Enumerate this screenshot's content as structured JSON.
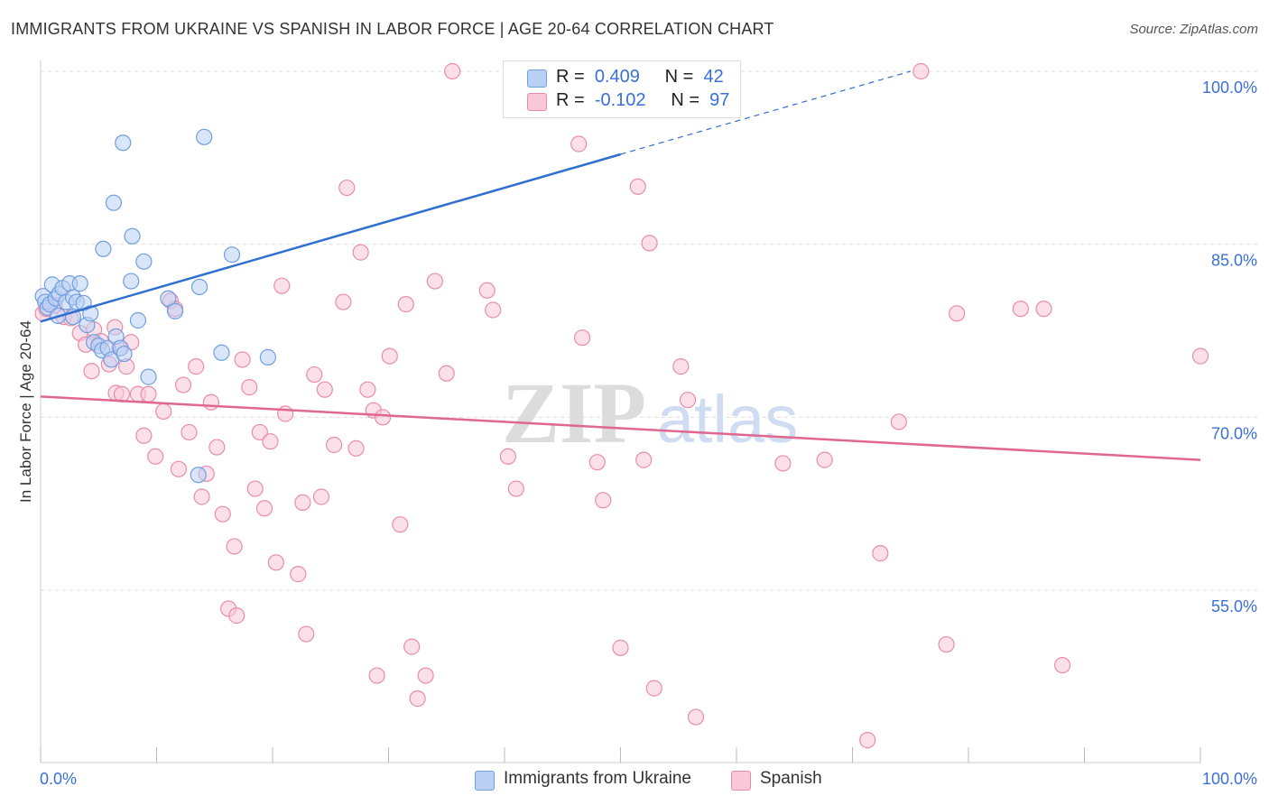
{
  "title": "IMMIGRANTS FROM UKRAINE VS SPANISH IN LABOR FORCE | AGE 20-64 CORRELATION CHART",
  "source": "Source: ZipAtlas.com",
  "watermark": {
    "zip": "ZIP",
    "atlas": "atlas"
  },
  "legend_top": [
    {
      "r_label": "R =",
      "r_value": "0.409",
      "n_label": "N =",
      "n_value": "42"
    },
    {
      "r_label": "R =",
      "r_value": "-0.102",
      "n_label": "N =",
      "n_value": "97"
    }
  ],
  "colors": {
    "ukraine_fill": "#b9d0f4",
    "ukraine_stroke": "#6f9fe0",
    "ukraine_line": "#2e6fcf",
    "spanish_fill": "#f9c7d7",
    "spanish_stroke": "#e98cab",
    "spanish_line": "#e0678f",
    "axis_text": "#3a6fd8",
    "grid": "#dddddd"
  },
  "chart_data": {
    "type": "scatter",
    "title": "IMMIGRANTS FROM UKRAINE VS SPANISH IN LABOR FORCE | AGE 20-64 CORRELATION CHART",
    "xlabel": "",
    "ylabel": "In Labor Force | Age 20-64",
    "xlim": [
      0,
      100
    ],
    "ylim": [
      40,
      102
    ],
    "x_tick_labels": [
      {
        "value": 0,
        "label": "0.0%"
      },
      {
        "value": 100,
        "label": "100.0%"
      }
    ],
    "y_tick_labels": [
      {
        "value": 55,
        "label": "55.0%"
      },
      {
        "value": 70,
        "label": "70.0%"
      },
      {
        "value": 85,
        "label": "85.0%"
      },
      {
        "value": 100,
        "label": "100.0%"
      }
    ],
    "series": [
      {
        "name": "Immigrants from Ukraine",
        "r": 0.409,
        "n": 42,
        "trend": {
          "x0": 0,
          "y0": 78.3,
          "x1": 50,
          "y1": 92.8,
          "dash_to_x": 75,
          "dash_to_y": 100
        },
        "points": [
          [
            0.2,
            80.5
          ],
          [
            0.4,
            80.0
          ],
          [
            0.6,
            79.5
          ],
          [
            0.8,
            79.8
          ],
          [
            1.0,
            81.5
          ],
          [
            1.3,
            80.3
          ],
          [
            1.6,
            80.7
          ],
          [
            1.9,
            81.2
          ],
          [
            2.2,
            80.0
          ],
          [
            2.5,
            81.6
          ],
          [
            2.8,
            80.4
          ],
          [
            3.1,
            80.0
          ],
          [
            3.4,
            81.6
          ],
          [
            3.7,
            79.9
          ],
          [
            4.0,
            78.0
          ],
          [
            4.3,
            79.0
          ],
          [
            4.6,
            76.5
          ],
          [
            5.0,
            76.2
          ],
          [
            5.3,
            75.8
          ],
          [
            5.8,
            76.0
          ],
          [
            6.1,
            75.0
          ],
          [
            6.5,
            77.0
          ],
          [
            6.9,
            76.0
          ],
          [
            7.2,
            75.5
          ],
          [
            5.4,
            84.6
          ],
          [
            6.3,
            88.6
          ],
          [
            7.1,
            93.8
          ],
          [
            7.9,
            85.7
          ],
          [
            7.8,
            81.8
          ],
          [
            8.4,
            78.4
          ],
          [
            8.9,
            83.5
          ],
          [
            9.3,
            73.5
          ],
          [
            11.0,
            80.3
          ],
          [
            11.6,
            79.2
          ],
          [
            13.7,
            81.3
          ],
          [
            14.1,
            94.3
          ],
          [
            13.6,
            65.0
          ],
          [
            15.6,
            75.6
          ],
          [
            16.5,
            84.1
          ],
          [
            19.6,
            75.2
          ],
          [
            1.5,
            78.8
          ],
          [
            2.8,
            78.7
          ]
        ]
      },
      {
        "name": "Spanish",
        "r": -0.102,
        "n": 97,
        "trend": {
          "x0": 0,
          "y0": 71.8,
          "x1": 100,
          "y1": 66.3
        },
        "points": [
          [
            0.2,
            79.0
          ],
          [
            0.5,
            79.4
          ],
          [
            1.2,
            79.7
          ],
          [
            2.0,
            78.7
          ],
          [
            2.6,
            78.6
          ],
          [
            3.4,
            77.3
          ],
          [
            3.9,
            76.3
          ],
          [
            4.6,
            77.6
          ],
          [
            4.4,
            74.0
          ],
          [
            5.2,
            76.6
          ],
          [
            5.9,
            74.6
          ],
          [
            6.4,
            77.8
          ],
          [
            6.8,
            76.0
          ],
          [
            6.5,
            72.1
          ],
          [
            7.0,
            72.0
          ],
          [
            7.4,
            74.4
          ],
          [
            7.8,
            76.5
          ],
          [
            8.4,
            72.0
          ],
          [
            8.9,
            68.4
          ],
          [
            9.3,
            72.0
          ],
          [
            9.9,
            66.6
          ],
          [
            10.6,
            70.5
          ],
          [
            11.2,
            80.1
          ],
          [
            11.6,
            79.4
          ],
          [
            11.9,
            65.5
          ],
          [
            12.3,
            72.8
          ],
          [
            12.8,
            68.7
          ],
          [
            13.4,
            74.4
          ],
          [
            13.9,
            63.1
          ],
          [
            14.3,
            65.1
          ],
          [
            14.7,
            71.3
          ],
          [
            15.2,
            67.4
          ],
          [
            15.7,
            61.6
          ],
          [
            16.2,
            53.4
          ],
          [
            16.7,
            58.8
          ],
          [
            16.9,
            52.8
          ],
          [
            17.4,
            75.0
          ],
          [
            18.0,
            72.6
          ],
          [
            18.5,
            63.8
          ],
          [
            18.9,
            68.7
          ],
          [
            19.3,
            62.1
          ],
          [
            19.8,
            67.9
          ],
          [
            20.3,
            57.4
          ],
          [
            20.8,
            81.4
          ],
          [
            21.1,
            70.3
          ],
          [
            22.2,
            56.4
          ],
          [
            22.6,
            62.6
          ],
          [
            22.9,
            51.2
          ],
          [
            23.6,
            73.7
          ],
          [
            24.2,
            63.1
          ],
          [
            24.5,
            72.4
          ],
          [
            25.3,
            67.6
          ],
          [
            26.1,
            80.0
          ],
          [
            26.4,
            89.9
          ],
          [
            27.2,
            67.3
          ],
          [
            27.6,
            84.3
          ],
          [
            28.2,
            72.4
          ],
          [
            28.7,
            70.6
          ],
          [
            29.0,
            47.6
          ],
          [
            29.5,
            70.0
          ],
          [
            30.1,
            75.3
          ],
          [
            31.0,
            60.7
          ],
          [
            31.5,
            79.8
          ],
          [
            32.0,
            50.1
          ],
          [
            32.5,
            45.6
          ],
          [
            33.2,
            47.6
          ],
          [
            34.0,
            81.8
          ],
          [
            35.0,
            73.8
          ],
          [
            35.5,
            100.0
          ],
          [
            38.5,
            81.0
          ],
          [
            39.0,
            79.3
          ],
          [
            40.3,
            66.6
          ],
          [
            41.0,
            63.8
          ],
          [
            46.4,
            93.7
          ],
          [
            46.7,
            76.9
          ],
          [
            48.0,
            66.1
          ],
          [
            48.5,
            62.8
          ],
          [
            50.0,
            50.0
          ],
          [
            51.5,
            90.0
          ],
          [
            52.0,
            66.3
          ],
          [
            52.5,
            85.1
          ],
          [
            52.9,
            46.5
          ],
          [
            55.2,
            74.4
          ],
          [
            55.8,
            71.5
          ],
          [
            56.5,
            44.0
          ],
          [
            64.0,
            66.0
          ],
          [
            67.6,
            66.3
          ],
          [
            71.3,
            42.0
          ],
          [
            72.4,
            58.2
          ],
          [
            74.0,
            69.6
          ],
          [
            75.9,
            100.0
          ],
          [
            78.1,
            50.3
          ],
          [
            79.0,
            79.0
          ],
          [
            84.5,
            79.4
          ],
          [
            86.5,
            79.4
          ],
          [
            88.1,
            48.5
          ],
          [
            100.0,
            75.3
          ]
        ]
      }
    ]
  },
  "axis": {
    "x_left_label": "0.0%",
    "x_right_label": "100.0%",
    "y_label": "In Labor Force | Age 20-64",
    "y_labels": [
      "100.0%",
      "85.0%",
      "70.0%",
      "55.0%"
    ]
  },
  "legend_bottom": [
    {
      "label": "Immigrants from Ukraine"
    },
    {
      "label": "Spanish"
    }
  ]
}
